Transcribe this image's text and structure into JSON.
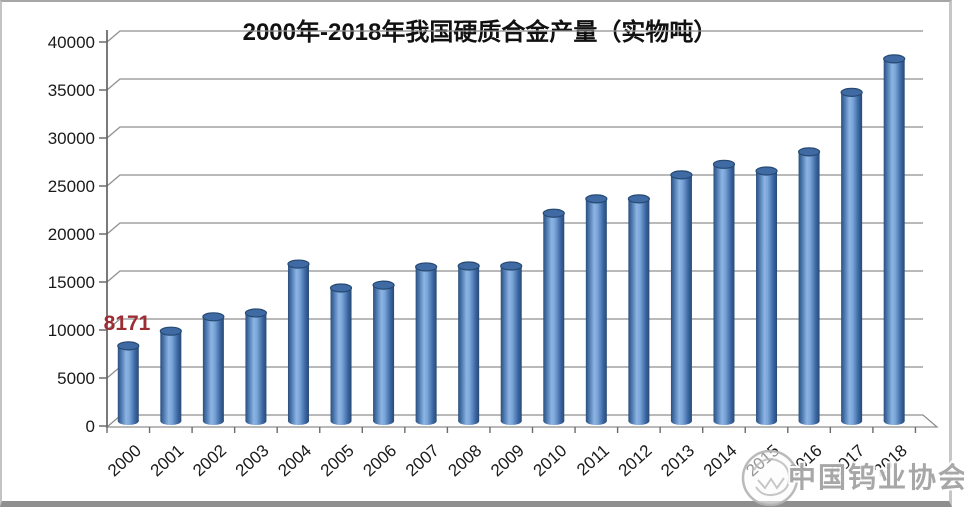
{
  "chart_data": {
    "type": "bar",
    "style": "3d-cylinder",
    "title": "2000年-2018年我国硬质合金产量（实物吨）",
    "categories": [
      "2000",
      "2001",
      "2002",
      "2003",
      "2004",
      "2005",
      "2006",
      "2007",
      "2008",
      "2009",
      "2010",
      "2011",
      "2012",
      "2013",
      "2014",
      "2015",
      "2016",
      "2017",
      "2018"
    ],
    "values": [
      8171,
      9700,
      11200,
      11600,
      16700,
      14200,
      14500,
      16400,
      16500,
      16500,
      22000,
      23500,
      23500,
      26000,
      27100,
      26400,
      28400,
      34600,
      38100
    ],
    "xlabel": "",
    "ylabel": "",
    "ylim": [
      0,
      40000
    ],
    "ytick_interval": 5000,
    "ytick_labels": [
      "0",
      "5000",
      "10000",
      "15000",
      "20000",
      "25000",
      "30000",
      "35000",
      "40000"
    ],
    "grid": true,
    "legend": "none",
    "colors": {
      "bar_main": "#4f81bd",
      "bar_edge_dark": "#2c517f",
      "bar_highlight": "#8db4e3",
      "bar_cap": "#3f6aa3",
      "bar_cap_edge": "#264a72",
      "grid_line": "#8f8f8f",
      "axis_line": "#6b6b6b",
      "text": "#1a1a1a"
    },
    "data_labels": [
      {
        "category": "2000",
        "text": "8171",
        "color": "#9b2d33"
      }
    ]
  },
  "watermark": {
    "text": "中国钨业协会",
    "logo": "china-tungsten-association-logo",
    "color": "#a9a9a9"
  }
}
